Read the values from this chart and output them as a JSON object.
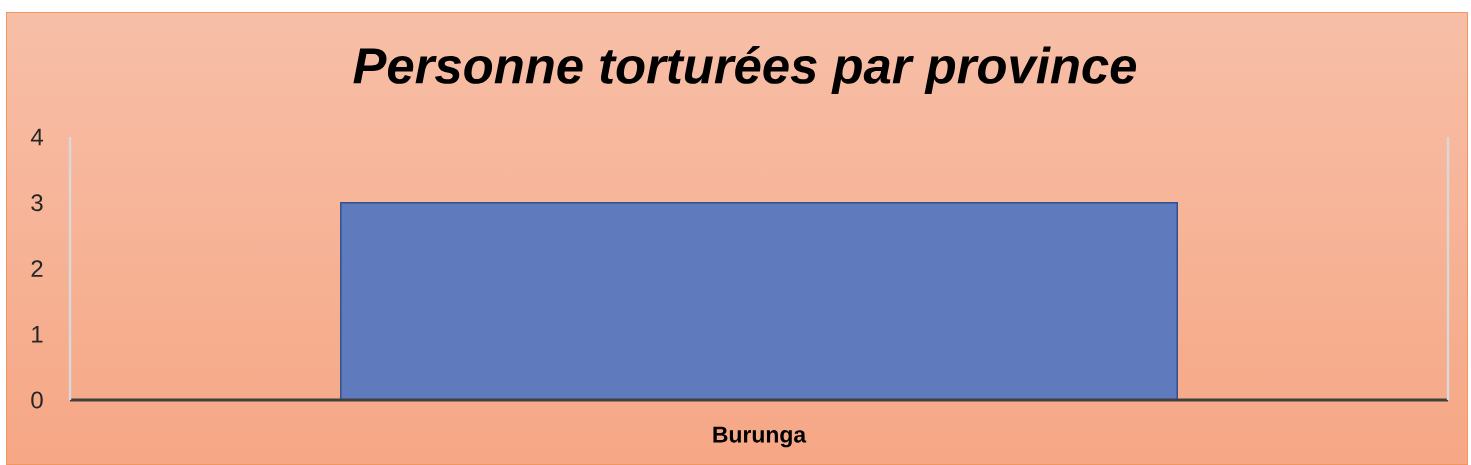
{
  "chart_data": {
    "type": "bar",
    "title": "Personne torturées par province",
    "categories": [
      "Burunga"
    ],
    "values": [
      3
    ],
    "color": "#5f7bbd",
    "ylim": [
      0,
      4
    ],
    "yticks": [
      0,
      1,
      2,
      3,
      4
    ]
  }
}
